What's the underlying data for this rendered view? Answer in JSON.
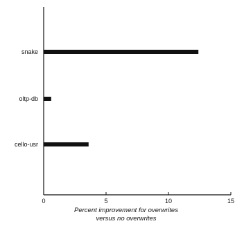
{
  "chart_data": {
    "type": "bar",
    "orientation": "horizontal",
    "categories": [
      "snake",
      "oltp-db",
      "cello-usr"
    ],
    "values": [
      12.4,
      0.6,
      3.6
    ],
    "xlabel_lines": [
      "Percent improvement for overwrites",
      "versus no overwrites"
    ],
    "xlim": [
      0,
      15
    ],
    "xticks": [
      0,
      5,
      10,
      15
    ],
    "grid": false,
    "bar_color": "#111111"
  }
}
